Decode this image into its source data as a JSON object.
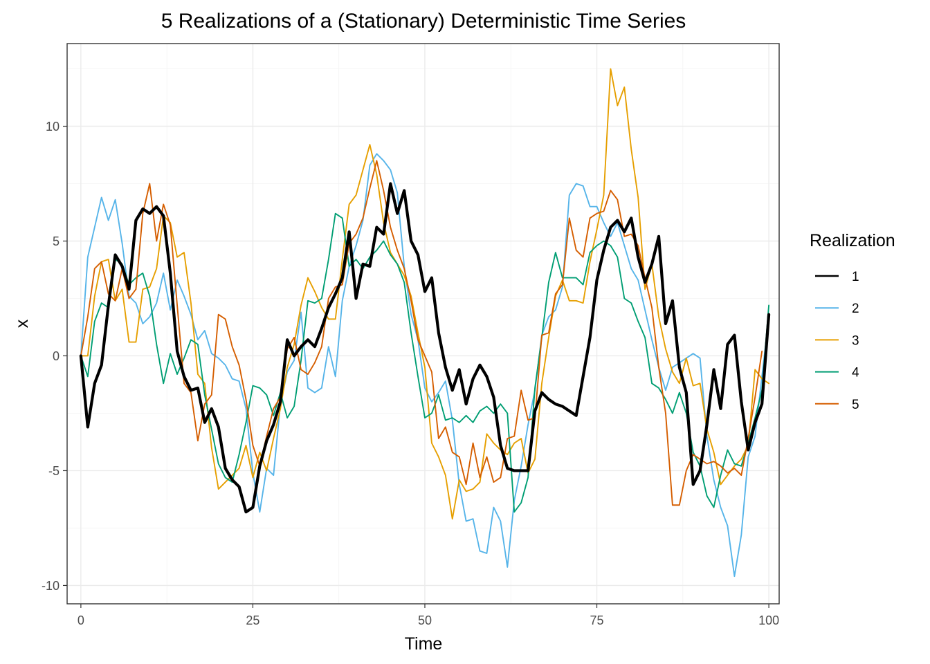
{
  "chart_data": {
    "type": "line",
    "title": "5 Realizations of a (Stationary) Deterministic Time Series",
    "xlabel": "Time",
    "ylabel": "x",
    "xlim": [
      -2,
      101.5
    ],
    "ylim": [
      -10.8,
      13.6
    ],
    "x_ticks": [
      0,
      25,
      50,
      75,
      100
    ],
    "x_tick_labels": [
      "0",
      "25",
      "50",
      "75",
      "100"
    ],
    "y_ticks": [
      -10,
      -5,
      0,
      5,
      10
    ],
    "y_tick_labels": [
      "-10",
      "-5",
      "0",
      "5",
      "10"
    ],
    "grid": true,
    "legend": {
      "title": "Realization",
      "position": "right"
    },
    "series": [
      {
        "name": "1",
        "color": "#000000",
        "values": [
          0.0,
          -3.1,
          -1.2,
          -0.4,
          2.2,
          4.4,
          3.9,
          2.9,
          5.9,
          6.4,
          6.2,
          6.5,
          6.1,
          3.6,
          0.2,
          -0.9,
          -1.5,
          -1.4,
          -2.9,
          -2.3,
          -3.1,
          -4.9,
          -5.4,
          -5.7,
          -6.8,
          -6.6,
          -4.8,
          -3.7,
          -3.0,
          -2.0,
          0.7,
          0.0,
          0.4,
          0.7,
          0.4,
          1.2,
          2.1,
          2.7,
          3.4,
          5.4,
          2.5,
          4.0,
          3.9,
          5.6,
          5.3,
          7.5,
          6.2,
          7.2,
          5.0,
          4.4,
          2.8,
          3.4,
          1.0,
          -0.5,
          -1.5,
          -0.6,
          -2.1,
          -1.0,
          -0.4,
          -0.9,
          -1.8,
          -3.9,
          -4.9,
          -5.0,
          -5.0,
          -5.0,
          -2.4,
          -1.6,
          -1.9,
          -2.1,
          -2.2,
          -2.4,
          -2.6,
          -0.9,
          0.8,
          3.3,
          4.6,
          5.6,
          5.9,
          5.4,
          6.0,
          4.3,
          3.2,
          4.0,
          5.2,
          1.4,
          2.4,
          -0.5,
          -1.6,
          -5.6,
          -5.0,
          -3.0,
          -0.6,
          -2.3,
          0.5,
          0.9,
          -2.0,
          -4.1,
          -2.9,
          -2.1,
          1.8
        ]
      },
      {
        "name": "2",
        "color": "#56B4E9",
        "values": [
          0.0,
          4.3,
          5.6,
          6.9,
          5.9,
          6.8,
          4.9,
          2.6,
          2.3,
          1.4,
          1.7,
          2.3,
          3.6,
          2.0,
          3.3,
          2.6,
          1.8,
          0.7,
          1.1,
          0.1,
          -0.1,
          -0.4,
          -1.0,
          -1.1,
          -2.3,
          -5.1,
          -6.8,
          -4.9,
          -5.2,
          -2.1,
          -0.7,
          -0.2,
          1.9,
          -1.4,
          -1.6,
          -1.4,
          0.4,
          -0.9,
          2.4,
          3.9,
          4.8,
          5.9,
          8.3,
          8.8,
          8.5,
          8.1,
          7.1,
          3.9,
          1.8,
          0.7,
          -1.4,
          -2.0,
          -1.6,
          -1.1,
          -2.8,
          -5.6,
          -7.2,
          -7.1,
          -8.5,
          -8.6,
          -6.6,
          -7.2,
          -9.2,
          -6.3,
          -4.8,
          -3.0,
          -1.5,
          0.9,
          1.7,
          2.0,
          3.0,
          7.0,
          7.5,
          7.4,
          6.5,
          6.5,
          5.8,
          5.2,
          5.8,
          4.8,
          3.8,
          3.3,
          2.0,
          0.7,
          -0.5,
          -1.5,
          -0.5,
          -0.3,
          -0.1,
          0.1,
          -0.1,
          -3.5,
          -5.4,
          -6.6,
          -7.4,
          -9.6,
          -7.8,
          -4.4,
          -3.5,
          -0.9,
          1.7
        ]
      },
      {
        "name": "3",
        "color": "#E69F00",
        "values": [
          0.0,
          0.0,
          2.6,
          4.1,
          4.2,
          2.4,
          2.9,
          0.6,
          0.6,
          2.9,
          3.0,
          3.8,
          6.1,
          5.8,
          4.3,
          4.5,
          2.3,
          -0.8,
          -1.2,
          -4.0,
          -5.8,
          -5.5,
          -5.2,
          -4.9,
          -3.9,
          -5.3,
          -4.2,
          -5.0,
          -3.6,
          -2.3,
          -0.5,
          0.5,
          2.2,
          3.4,
          2.8,
          2.1,
          1.6,
          1.6,
          4.2,
          6.6,
          7.0,
          8.1,
          9.2,
          7.9,
          5.8,
          4.5,
          4.0,
          3.5,
          2.6,
          1.0,
          -0.5,
          -3.8,
          -4.4,
          -5.2,
          -7.1,
          -5.4,
          -5.9,
          -5.8,
          -5.5,
          -3.4,
          -3.8,
          -4.1,
          -4.3,
          -3.8,
          -3.6,
          -5.1,
          -4.5,
          -1.2,
          0.8,
          2.6,
          3.3,
          2.4,
          2.4,
          2.3,
          4.1,
          5.5,
          7.0,
          12.5,
          10.9,
          11.7,
          9.0,
          6.9,
          2.9,
          4.0,
          1.7,
          0.3,
          -0.7,
          -1.2,
          -0.1,
          -1.3,
          -1.2,
          -3.2,
          -4.2,
          -5.6,
          -5.2,
          -4.8,
          -4.5,
          -3.9,
          -0.6,
          -1.0,
          -1.2
        ]
      },
      {
        "name": "4",
        "color": "#009E73",
        "values": [
          0.0,
          -0.9,
          1.5,
          2.3,
          2.1,
          4.2,
          4.0,
          3.1,
          3.4,
          3.6,
          2.6,
          0.5,
          -1.2,
          0.1,
          -0.8,
          -0.1,
          0.7,
          0.5,
          -1.7,
          -3.2,
          -4.7,
          -5.3,
          -5.5,
          -4.3,
          -2.9,
          -1.3,
          -1.4,
          -1.7,
          -2.6,
          -1.6,
          -2.7,
          -2.2,
          -0.2,
          2.4,
          2.3,
          2.5,
          4.2,
          6.2,
          6.0,
          3.9,
          4.2,
          3.8,
          4.3,
          4.6,
          5.0,
          4.4,
          4.0,
          3.2,
          1.0,
          -0.9,
          -2.7,
          -2.5,
          -1.7,
          -2.8,
          -2.7,
          -2.9,
          -2.6,
          -2.9,
          -2.4,
          -2.2,
          -2.5,
          -2.1,
          -2.5,
          -6.8,
          -6.4,
          -5.3,
          -1.4,
          0.8,
          3.2,
          4.5,
          3.4,
          3.4,
          3.4,
          3.1,
          4.5,
          4.8,
          5.0,
          4.8,
          4.3,
          2.5,
          2.3,
          1.5,
          0.8,
          -1.2,
          -1.4,
          -1.9,
          -2.5,
          -1.6,
          -2.5,
          -4.2,
          -4.8,
          -6.1,
          -6.6,
          -5.2,
          -4.1,
          -4.7,
          -4.8,
          -3.8,
          -2.7,
          -1.5,
          2.2
        ]
      },
      {
        "name": "5",
        "color": "#D55E00",
        "values": [
          0.0,
          1.7,
          3.8,
          4.1,
          2.7,
          2.4,
          3.8,
          2.5,
          2.9,
          6.2,
          7.5,
          5.0,
          6.6,
          5.7,
          2.2,
          -1.2,
          -1.6,
          -3.7,
          -2.1,
          -1.7,
          1.8,
          1.6,
          0.4,
          -0.4,
          -1.9,
          -3.9,
          -4.8,
          -3.5,
          -2.3,
          -1.8,
          0.3,
          0.8,
          -0.6,
          -0.8,
          -0.3,
          0.4,
          2.5,
          3.0,
          3.1,
          4.9,
          5.3,
          6.0,
          7.3,
          8.5,
          7.2,
          5.6,
          4.6,
          3.8,
          2.4,
          0.7,
          0.0,
          -0.7,
          -3.6,
          -3.1,
          -4.2,
          -4.4,
          -5.6,
          -3.8,
          -5.3,
          -4.4,
          -5.5,
          -5.3,
          -3.6,
          -3.5,
          -1.5,
          -2.8,
          -2.7,
          0.9,
          1.0,
          2.7,
          3.1,
          6.0,
          4.6,
          4.3,
          6.0,
          6.2,
          6.3,
          7.2,
          6.8,
          5.2,
          5.3,
          4.8,
          3.4,
          2.1,
          -0.5,
          -2.5,
          -6.5,
          -6.5,
          -5.0,
          -4.3,
          -4.5,
          -4.7,
          -4.6,
          -4.8,
          -5.1,
          -4.9,
          -5.2,
          -3.6,
          -1.8,
          0.2
        ]
      }
    ]
  }
}
